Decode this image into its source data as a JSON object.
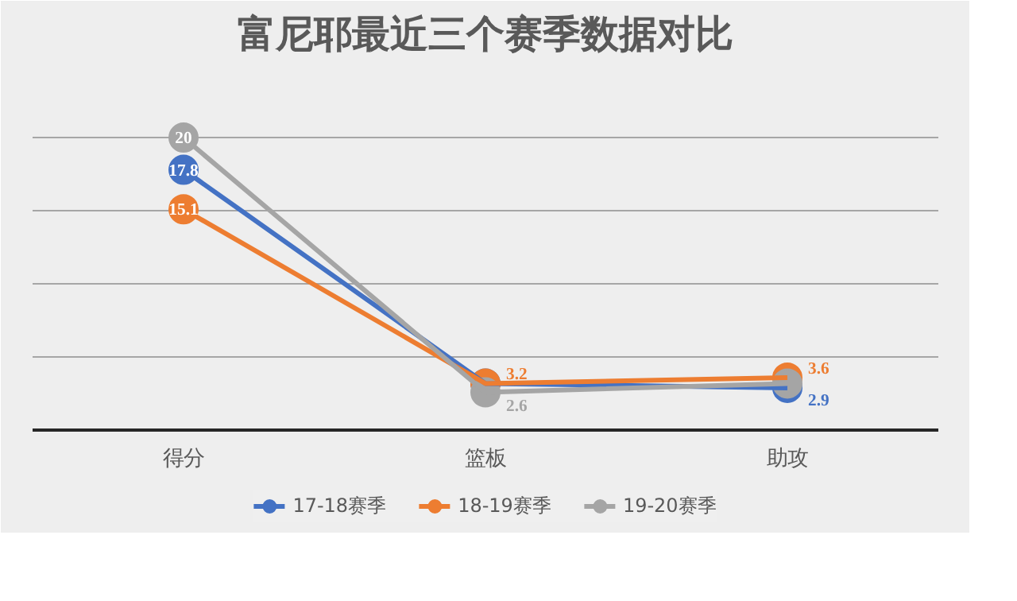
{
  "chart_data": {
    "type": "line",
    "title": "富尼耶最近三个赛季数据对比",
    "categories": [
      "得分",
      "篮板",
      "助攻"
    ],
    "series": [
      {
        "name": "17-18赛季",
        "color": "#4472c4",
        "values": [
          17.8,
          3.2,
          2.9
        ],
        "value_labels": [
          "17.8",
          null,
          "2.9"
        ]
      },
      {
        "name": "18-19赛季",
        "color": "#ed7d31",
        "values": [
          15.1,
          3.2,
          3.6
        ],
        "value_labels": [
          "15.1",
          "3.2",
          "3.6"
        ]
      },
      {
        "name": "19-20赛季",
        "color": "#a5a5a5",
        "values": [
          20,
          2.6,
          3.2
        ],
        "value_labels": [
          "20",
          "2.6",
          null
        ]
      }
    ],
    "ylim": [
      0,
      25
    ],
    "yticks": [
      {
        "value": 0,
        "label": null
      },
      {
        "value": 5,
        "label": null
      },
      {
        "value": 10,
        "label": null
      },
      {
        "value": 15,
        "label": null
      },
      {
        "value": 20,
        "label": null
      },
      {
        "value": 25,
        "label": null
      }
    ],
    "grid": "y",
    "legend": "bottom",
    "marker": "circle",
    "line_style": "solid",
    "tick_labels": "x"
  }
}
